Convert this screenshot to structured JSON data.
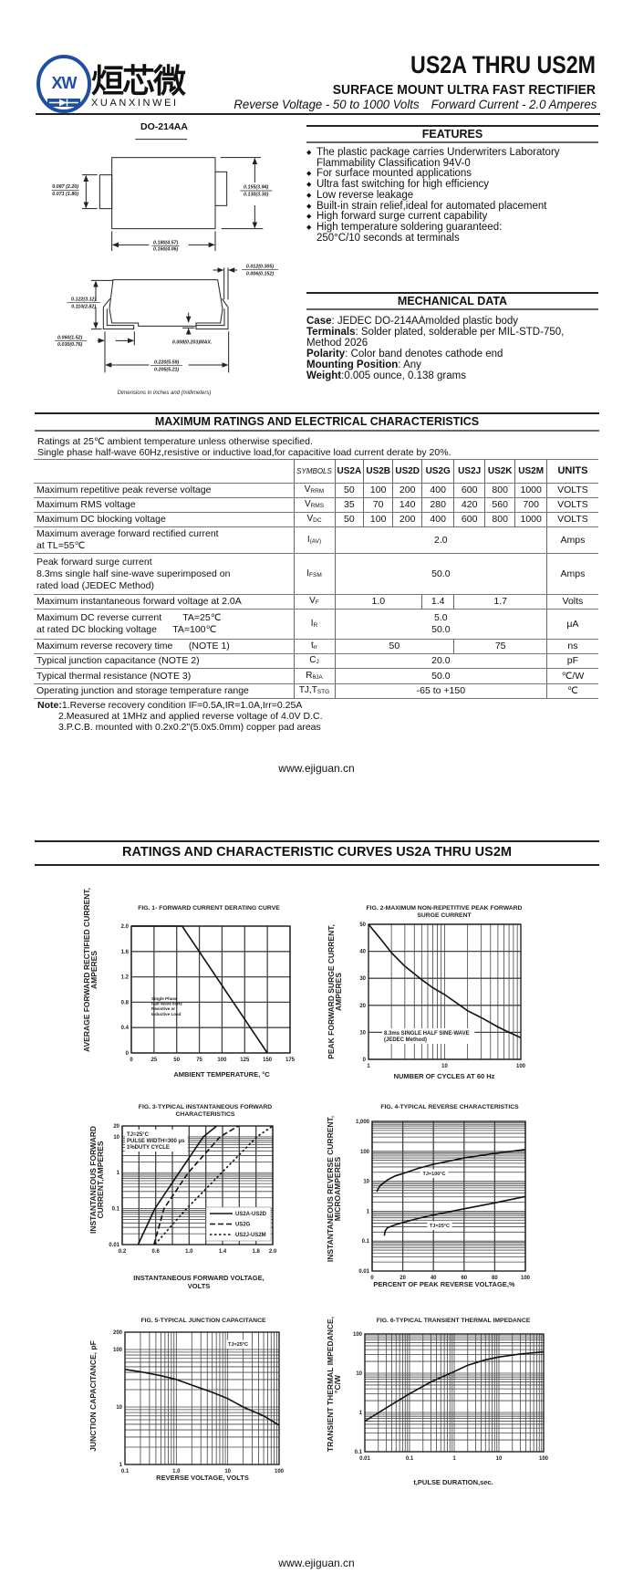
{
  "logo": {
    "cn": "烜芯微",
    "en": "XUANXINWEI",
    "mark": "XW",
    "color": "#1f4fa0"
  },
  "header": {
    "title": "US2A THRU US2M",
    "subtitle": "SURFACE MOUNT ULTRA FAST RECTIFIER",
    "reverse_voltage": "Reverse Voltage - 50 to 1000 Volts",
    "forward_current": "Forward Current - 2.0 Amperes"
  },
  "package": {
    "name": "DO-214AA",
    "dims": {
      "tab_h": [
        "0.087 (2.20)",
        "0.071 (1.80)"
      ],
      "body_h": [
        "0.155(3.94)",
        "0.130(3.30)"
      ],
      "body_w": [
        "0.180(4.57)",
        "0.160(4.06)"
      ],
      "lead_t": [
        "0.012(0.305)",
        "0.006(0.152)"
      ],
      "height": [
        "0.122(3.12)",
        "0.110(2.82)"
      ],
      "lead_l": [
        "0.060(1.52)",
        "0.030(0.76)"
      ],
      "standoff": "0.008(0.203)MAX.",
      "total_w": [
        "0.220(5.59)",
        "0.205(5.21)"
      ]
    },
    "caption": "Dimensions in inches and (millimeters)"
  },
  "features": {
    "heading": "FEATURES",
    "bullet_icon": "diamond-bullet-icon",
    "items": [
      [
        "The plastic package carries Underwriters Laboratory",
        "Flammability Classification 94V-0"
      ],
      [
        "For surface mounted applications"
      ],
      [
        "Ultra fast switching for high efficiency"
      ],
      [
        "Low reverse leakage"
      ],
      [
        "Built-in strain relief,ideal for automated placement"
      ],
      [
        "High forward surge current capability"
      ],
      [
        "High temperature soldering guaranteed:",
        "250°C/10 seconds at terminals"
      ]
    ]
  },
  "mechanical": {
    "heading": "MECHANICAL DATA",
    "items": [
      {
        "label": "Case",
        "sep": ": ",
        "value": "JEDEC DO-214AAmolded plastic body"
      },
      {
        "label": "Terminals",
        "sep": ": ",
        "value": "Solder plated, solderable per MIL-STD-750, Method 2026"
      },
      {
        "label": "Polarity",
        "sep": ": ",
        "value": "Color band denotes cathode end"
      },
      {
        "label": "Mounting Position",
        "sep": ": ",
        "value": "Any"
      },
      {
        "label": "Weight",
        "sep": ":",
        "value": "0.005 ounce, 0.138 grams"
      }
    ]
  },
  "ratings": {
    "heading": "MAXIMUM RATINGS AND ELECTRICAL CHARACTERISTICS",
    "conditions": [
      "Ratings at 25℃ ambient temperature unless otherwise specified.",
      "Single phase half-wave 60Hz,resistive or inductive load,for capacitive load current derate by 20%."
    ],
    "columns": [
      "",
      "SYMBOLS",
      "US2A",
      "US2B",
      "US2D",
      "US2G",
      "US2J",
      "US2K",
      "US2M",
      "UNITS"
    ],
    "rows": [
      {
        "desc": [
          "Maximum repetitive peak reverse voltage"
        ],
        "sym": [
          "V",
          "RRM"
        ],
        "cells": [
          [
            "50",
            1
          ],
          [
            "100",
            1
          ],
          [
            "200",
            1
          ],
          [
            "400",
            1
          ],
          [
            "600",
            1
          ],
          [
            "800",
            1
          ],
          [
            "1000",
            1
          ]
        ],
        "unit": "VOLTS"
      },
      {
        "desc": [
          "Maximum RMS voltage"
        ],
        "sym": [
          "V",
          "RMS"
        ],
        "cells": [
          [
            "35",
            1
          ],
          [
            "70",
            1
          ],
          [
            "140",
            1
          ],
          [
            "280",
            1
          ],
          [
            "420",
            1
          ],
          [
            "560",
            1
          ],
          [
            "700",
            1
          ]
        ],
        "unit": "VOLTS"
      },
      {
        "desc": [
          "Maximum DC blocking voltage"
        ],
        "sym": [
          "V",
          "DC"
        ],
        "cells": [
          [
            "50",
            1
          ],
          [
            "100",
            1
          ],
          [
            "200",
            1
          ],
          [
            "400",
            1
          ],
          [
            "600",
            1
          ],
          [
            "800",
            1
          ],
          [
            "1000",
            1
          ]
        ],
        "unit": "VOLTS"
      },
      {
        "desc": [
          "Maximum average forward rectified current",
          "at TL=55℃"
        ],
        "sym": [
          "I",
          "(AV)"
        ],
        "cells": [
          [
            "2.0",
            7
          ]
        ],
        "unit": "Amps"
      },
      {
        "desc": [
          "Peak forward surge current",
          "8.3ms single half sine-wave superimposed on",
          "rated load (JEDEC Method)"
        ],
        "sym": [
          "I",
          "FSM"
        ],
        "cells": [
          [
            "50.0",
            7
          ]
        ],
        "unit": "Amps"
      },
      {
        "desc": [
          "Maximum instantaneous forward voltage at 2.0A"
        ],
        "sym": [
          "V",
          "F"
        ],
        "cells": [
          [
            "1.0",
            3
          ],
          [
            "1.4",
            1
          ],
          [
            "1.7",
            3
          ]
        ],
        "unit": "Volts"
      },
      {
        "desc": [
          "Maximum DC reverse current        TA=25℃",
          "at rated DC blocking voltage      TA=100℃"
        ],
        "sym": [
          "I",
          "R"
        ],
        "cells": [
          [
            "5.0\n50.0",
            7
          ]
        ],
        "unit": "μA"
      },
      {
        "desc": [
          "Maximum reverse recovery time      (NOTE 1)"
        ],
        "sym": [
          "t",
          "rr"
        ],
        "cells": [
          [
            "50",
            4
          ],
          [
            "75",
            3
          ]
        ],
        "unit": "ns"
      },
      {
        "desc": [
          "Typical junction capacitance (NOTE 2)"
        ],
        "sym": [
          "C",
          "J"
        ],
        "cells": [
          [
            "20.0",
            7
          ]
        ],
        "unit": "pF"
      },
      {
        "desc": [
          "Typical thermal resistance (NOTE 3)"
        ],
        "sym": [
          "R",
          "θJA"
        ],
        "cells": [
          [
            "50.0",
            7
          ]
        ],
        "unit": "℃/W"
      },
      {
        "desc": [
          "Operating junction and storage temperature range"
        ],
        "sym": [
          "TJ,T",
          "STG"
        ],
        "cells": [
          [
            "-65 to +150",
            7
          ]
        ],
        "unit": "℃"
      }
    ],
    "notes": {
      "label": "Note:",
      "items": [
        "1.Reverse recovery condition IF=0.5A,IR=1.0A,Irr=0.25A",
        "2.Measured at 1MHz and applied reverse voltage of 4.0V D.C.",
        "3.P.C.B. mounted with 0.2x0.2\"(5.0x5.0mm) copper pad areas"
      ]
    }
  },
  "url_top": "www.ejiguan.cn",
  "curves_heading": "RATINGS AND CHARACTERISTIC CURVES US2A THRU US2M",
  "url_bottom": "www.ejiguan.cn",
  "chart_data": [
    {
      "type": "line",
      "title": [
        "FIG. 1- FORWARD CURRENT DERATING CURVE"
      ],
      "xlabel": [
        "AMBIENT TEMPERATURE, °C"
      ],
      "ylabel": [
        "AVERAGE FORWARD RECTIFIED CURRENT,",
        "AMPERES"
      ],
      "xscale": "linear",
      "yscale": "linear",
      "xlim": [
        0,
        175
      ],
      "ylim": [
        0,
        2.0
      ],
      "xticks": [
        0,
        25,
        50,
        75,
        100,
        125,
        150,
        175
      ],
      "xtick_labels": [
        "0",
        "25",
        "50",
        "75",
        "100",
        "125",
        "150",
        "175"
      ],
      "yticks": [
        0,
        0.4,
        0.8,
        1.2,
        1.6,
        2.0
      ],
      "ytick_labels": [
        "0",
        "0.4",
        "0.8",
        "1.2",
        "1.6",
        "2.0"
      ],
      "grid": true,
      "series": [
        {
          "style": "solid",
          "points": [
            [
              0,
              2.0
            ],
            [
              56,
              2.0
            ],
            [
              150,
              0
            ]
          ]
        }
      ],
      "annotations": [
        [
          "Single Phase",
          "Half Wave 60Hz",
          "Resistive or",
          "Inductive Load"
        ]
      ]
    },
    {
      "type": "line",
      "title": [
        "FIG. 2-MAXIMUM NON-REPETITIVE PEAK FORWARD",
        "SURGE CURRENT"
      ],
      "xlabel": [
        "NUMBER OF CYCLES AT 60 Hz"
      ],
      "ylabel": [
        "PEAK  FORWARD SURGE CURRENT,",
        "AMPERES"
      ],
      "xscale": "log",
      "yscale": "linear",
      "xlim": [
        1,
        100
      ],
      "ylim": [
        0,
        50
      ],
      "xticks": [
        1,
        10,
        100
      ],
      "xtick_labels": [
        "1",
        "10",
        "100"
      ],
      "yticks": [
        0,
        10,
        20,
        30,
        40,
        50
      ],
      "ytick_labels": [
        "0",
        "10",
        "20",
        "30",
        "40",
        "50"
      ],
      "grid": true,
      "series": [
        {
          "style": "solid",
          "points": [
            [
              1,
              50
            ],
            [
              1.5,
              44
            ],
            [
              2,
              39.5
            ],
            [
              3,
              34.5
            ],
            [
              5,
              29.5
            ],
            [
              7,
              26.5
            ],
            [
              10,
              24
            ],
            [
              20,
              18
            ],
            [
              30,
              15.5
            ],
            [
              50,
              12
            ],
            [
              70,
              10
            ],
            [
              100,
              8
            ]
          ]
        }
      ],
      "annotations": [
        [
          "8.3ms SINGLE HALF SINE-WAVE",
          "(JEDEC Method)"
        ]
      ]
    },
    {
      "type": "line",
      "title": [
        "FIG. 3-TYPICAL INSTANTANEOUS FORWARD",
        "CHARACTERISTICS"
      ],
      "xlabel": [
        "INSTANTANEOUS FORWARD VOLTAGE,",
        "VOLTS"
      ],
      "ylabel": [
        "INSTANTANEOUS FORWARD",
        "CURRENT,AMPERES"
      ],
      "xscale": "linear",
      "yscale": "log",
      "xlim": [
        0.2,
        2.0
      ],
      "ylim": [
        0.01,
        20
      ],
      "xticks": [
        0.2,
        0.6,
        1.0,
        1.4,
        1.8,
        2.0
      ],
      "xtick_labels": [
        "0.2",
        "0.6",
        "1.0",
        "1.4",
        "1.8",
        "2.0"
      ],
      "yticks": [
        0.01,
        0.1,
        1,
        10,
        20
      ],
      "ytick_labels": [
        "0.01",
        "0.1",
        "1",
        "10",
        "20"
      ],
      "grid": true,
      "series": [
        {
          "name": "US2A-US2D",
          "style": "solid",
          "points": [
            [
              0.39,
              0.01
            ],
            [
              0.59,
              0.1
            ],
            [
              0.88,
              1
            ],
            [
              1.17,
              10
            ],
            [
              1.33,
              20
            ]
          ]
        },
        {
          "name": "US2G",
          "style": "dashed",
          "points": [
            [
              0.58,
              0.01
            ],
            [
              0.7,
              0.1
            ],
            [
              0.99,
              1
            ],
            [
              1.37,
              10
            ],
            [
              1.59,
              20
            ]
          ]
        },
        {
          "name": "US2J-US2M",
          "style": "dotted",
          "points": [
            [
              0.59,
              0.01
            ],
            [
              0.97,
              0.1
            ],
            [
              1.39,
              1
            ],
            [
              1.81,
              10
            ],
            [
              2.0,
              20
            ]
          ]
        }
      ],
      "legend": "bottom-right",
      "annotations": [
        [
          "TJ=25°C",
          "PULSE WIDTH=300 μs",
          "1%DUTY CYCLE"
        ]
      ]
    },
    {
      "type": "line",
      "title": [
        "FIG. 4-TYPICAL REVERSE CHARACTERISTICS"
      ],
      "xlabel": [
        "PERCENT OF PEAK REVERSE VOLTAGE,%"
      ],
      "ylabel": [
        "INSTANTANEOUS REVERSE CURRENT,",
        "MICROAMPERES"
      ],
      "xscale": "linear",
      "yscale": "log",
      "xlim": [
        0,
        100
      ],
      "ylim": [
        0.01,
        1000
      ],
      "xticks": [
        0,
        20,
        40,
        60,
        80,
        100
      ],
      "xtick_labels": [
        "0",
        "20",
        "40",
        "60",
        "80",
        "100"
      ],
      "yticks": [
        0.01,
        0.1,
        1,
        10,
        100,
        1000
      ],
      "ytick_labels": [
        "0.01",
        "0.1",
        "1",
        "10",
        "100",
        "1,000"
      ],
      "grid": true,
      "series": [
        {
          "style": "solid",
          "points": [
            [
              3,
              4.5
            ],
            [
              5,
              7
            ],
            [
              10,
              11
            ],
            [
              15,
              15
            ],
            [
              20,
              18
            ],
            [
              30,
              27
            ],
            [
              40,
              37
            ],
            [
              60,
              60
            ],
            [
              80,
              85
            ],
            [
              100,
              115
            ]
          ]
        },
        {
          "style": "solid",
          "points": [
            [
              8,
              0.15
            ],
            [
              8.5,
              0.22
            ],
            [
              10,
              0.28
            ],
            [
              15,
              0.35
            ],
            [
              20,
              0.42
            ],
            [
              30,
              0.57
            ],
            [
              40,
              0.75
            ],
            [
              60,
              1.2
            ],
            [
              80,
              1.9
            ],
            [
              100,
              3.1
            ]
          ]
        }
      ],
      "annotations": [
        [
          "TJ=100°C"
        ],
        [
          "TJ=25°C"
        ]
      ]
    },
    {
      "type": "line",
      "title": [
        "FIG. 5-TYPICAL JUNCTION CAPACITANCE"
      ],
      "xlabel": [
        "REVERSE VOLTAGE, VOLTS"
      ],
      "ylabel": [
        "JUNCTION CAPACITANCE, pF"
      ],
      "xscale": "log",
      "yscale": "log",
      "xlim": [
        0.1,
        100
      ],
      "ylim": [
        1,
        200
      ],
      "xticks": [
        0.1,
        1,
        10,
        100
      ],
      "xtick_labels": [
        "0.1",
        "1.0",
        "10",
        "100"
      ],
      "yticks": [
        1,
        10,
        100,
        200
      ],
      "ytick_labels": [
        "1",
        "10",
        "100",
        "200"
      ],
      "grid": true,
      "series": [
        {
          "style": "solid",
          "points": [
            [
              0.1,
              45
            ],
            [
              0.2,
              41
            ],
            [
              0.5,
              35
            ],
            [
              1,
              30
            ],
            [
              2,
              24
            ],
            [
              5,
              18
            ],
            [
              10,
              14
            ],
            [
              20,
              10
            ],
            [
              50,
              7
            ],
            [
              100,
              4.8
            ]
          ]
        }
      ],
      "annotations": [
        [
          "TJ=25°C"
        ]
      ]
    },
    {
      "type": "line",
      "title": [
        "FIG. 6-TYPICAL TRANSIENT THERMAL IMPEDANCE"
      ],
      "xlabel": [
        "t,PULSE DURATION,sec."
      ],
      "ylabel": [
        "TRANSIENT THERMAL IMPEDANCE,",
        "°C/W"
      ],
      "xscale": "log",
      "yscale": "log",
      "xlim": [
        0.01,
        100
      ],
      "ylim": [
        0.1,
        100
      ],
      "xticks": [
        0.01,
        0.1,
        1,
        10,
        100
      ],
      "xtick_labels": [
        "0.01",
        "0.1",
        "1",
        "10",
        "100"
      ],
      "yticks": [
        0.1,
        1,
        10,
        100
      ],
      "ytick_labels": [
        "0.1",
        "1",
        "10",
        "100"
      ],
      "grid": true,
      "series": [
        {
          "style": "solid",
          "points": [
            [
              0.01,
              0.6
            ],
            [
              0.03,
              1.3
            ],
            [
              0.1,
              3
            ],
            [
              0.3,
              6
            ],
            [
              1,
              11
            ],
            [
              2,
              16
            ],
            [
              5,
              22
            ],
            [
              10,
              26
            ],
            [
              30,
              31
            ],
            [
              100,
              35
            ]
          ]
        }
      ],
      "annotations": []
    }
  ]
}
